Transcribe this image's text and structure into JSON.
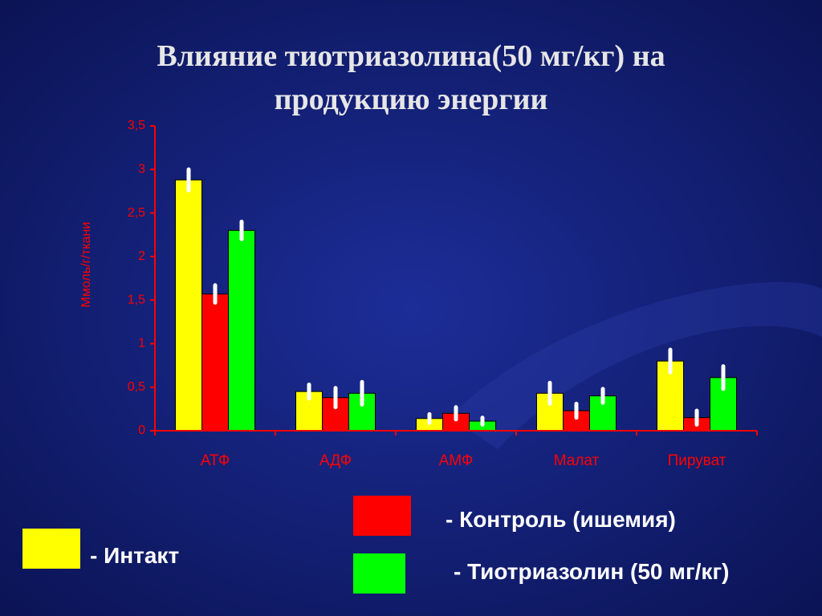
{
  "chart_data": {
    "type": "bar",
    "title": [
      "Влияние тиотриазолина(50 мг/кг) на",
      "продукцию энергии"
    ],
    "y_label": "Ммоль/г/ткани",
    "categories": [
      "АТФ",
      "АДФ",
      "АМФ",
      "Малат",
      "Пируват"
    ],
    "series": [
      {
        "name": "- Интакт",
        "color": "#ffff00",
        "values": [
          2.88,
          0.45,
          0.14,
          0.43,
          0.8
        ],
        "errors": [
          0.12,
          0.08,
          0.05,
          0.12,
          0.13
        ]
      },
      {
        "name": "- Контроль (ишемия)",
        "color": "#ff0000",
        "values": [
          1.57,
          0.38,
          0.2,
          0.23,
          0.15
        ],
        "errors": [
          0.1,
          0.11,
          0.07,
          0.08,
          0.08
        ]
      },
      {
        "name": "- Тиотриазолин (50 мг/кг)",
        "color": "#00ff00",
        "values": [
          2.3,
          0.43,
          0.11,
          0.4,
          0.61
        ],
        "errors": [
          0.1,
          0.13,
          0.04,
          0.08,
          0.13
        ]
      }
    ],
    "ylim": [
      0,
      3.5
    ],
    "yticks": [
      0,
      {
        "value": 0.5,
        "label": "0,5"
      },
      1,
      {
        "value": 1.5,
        "label": "1,5"
      },
      2,
      {
        "value": 2.5,
        "label": "2,5"
      },
      3,
      {
        "value": 3.5,
        "label": "3,5"
      }
    ],
    "error_color": "#ffffff",
    "axis_color": "#ff0000"
  }
}
